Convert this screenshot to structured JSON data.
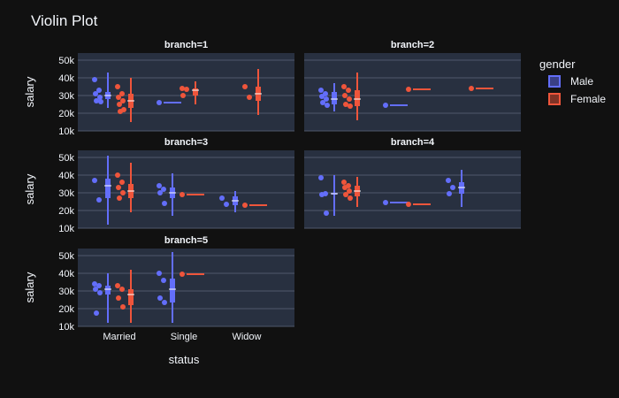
{
  "chart_data": {
    "type": "violin",
    "title": "Violin Plot",
    "xlabel": "status",
    "ylabel": "salary",
    "categories": [
      "Married",
      "Single",
      "Widow"
    ],
    "y_ticks": [
      10000,
      20000,
      30000,
      40000,
      50000
    ],
    "y_tick_labels": [
      "10k",
      "20k",
      "30k",
      "40k",
      "50k"
    ],
    "ylim": [
      10000,
      54000
    ],
    "legend": {
      "title": "gender",
      "placement": "right",
      "items": [
        {
          "name": "Male",
          "color": "#636efa"
        },
        {
          "name": "Female",
          "color": "#ef553b"
        }
      ]
    },
    "facets": [
      {
        "label": "branch=1",
        "groups": [
          {
            "series": "Male",
            "category": "Married",
            "points": [
              39000,
              33000,
              31000,
              29000,
              27000,
              26500
            ],
            "box": {
              "min": 23000,
              "q1": 28000,
              "median": 30000,
              "q3": 32000,
              "max": 43000
            }
          },
          {
            "series": "Female",
            "category": "Married",
            "points": [
              35000,
              31000,
              29000,
              27000,
              25000,
              22000,
              21000
            ],
            "box": {
              "min": 15000,
              "q1": 23000,
              "median": 27000,
              "q3": 31000,
              "max": 40000
            }
          },
          {
            "series": "Male",
            "category": "Single",
            "points": [
              26000
            ],
            "box": {
              "min": 26000,
              "q1": 26000,
              "median": 26000,
              "q3": 26000,
              "max": 26000
            }
          },
          {
            "series": "Female",
            "category": "Single",
            "points": [
              34000,
              33500,
              30000
            ],
            "box": {
              "min": 25000,
              "q1": 30000,
              "median": 33000,
              "q3": 34000,
              "max": 38000
            }
          },
          {
            "series": "Female",
            "category": "Widow",
            "points": [
              35000,
              29000
            ],
            "box": {
              "min": 19000,
              "q1": 27000,
              "median": 31000,
              "q3": 35000,
              "max": 45000
            }
          }
        ]
      },
      {
        "label": "branch=2",
        "groups": [
          {
            "series": "Male",
            "category": "Married",
            "points": [
              33000,
              31000,
              29500,
              28000,
              26000,
              24500
            ],
            "box": {
              "min": 21000,
              "q1": 25000,
              "median": 28000,
              "q3": 32000,
              "max": 37000
            }
          },
          {
            "series": "Female",
            "category": "Married",
            "points": [
              35000,
              33000,
              30000,
              28000,
              25000,
              24000
            ],
            "box": {
              "min": 16000,
              "q1": 24000,
              "median": 28000,
              "q3": 33000,
              "max": 43000
            }
          },
          {
            "series": "Male",
            "category": "Single",
            "points": [
              24500
            ],
            "box": {
              "min": 24500,
              "q1": 24500,
              "median": 24500,
              "q3": 24500,
              "max": 24500
            }
          },
          {
            "series": "Female",
            "category": "Single",
            "points": [
              33500
            ],
            "box": {
              "min": 33500,
              "q1": 33500,
              "median": 33500,
              "q3": 33500,
              "max": 33500
            }
          },
          {
            "series": "Female",
            "category": "Widow",
            "points": [
              34000
            ],
            "box": {
              "min": 34000,
              "q1": 34000,
              "median": 34000,
              "q3": 34000,
              "max": 34000
            }
          }
        ]
      },
      {
        "label": "branch=3",
        "groups": [
          {
            "series": "Male",
            "category": "Married",
            "points": [
              37000,
              26000
            ],
            "box": {
              "min": 12000,
              "q1": 27000,
              "median": 34000,
              "q3": 38000,
              "max": 51000
            }
          },
          {
            "series": "Female",
            "category": "Married",
            "points": [
              40000,
              36000,
              33000,
              30000,
              27000
            ],
            "box": {
              "min": 19000,
              "q1": 27000,
              "median": 31000,
              "q3": 35000,
              "max": 47000
            }
          },
          {
            "series": "Male",
            "category": "Single",
            "points": [
              34000,
              32000,
              30000,
              24000
            ],
            "box": {
              "min": 17000,
              "q1": 27000,
              "median": 30000,
              "q3": 33000,
              "max": 41000
            }
          },
          {
            "series": "Female",
            "category": "Single",
            "points": [
              29000
            ],
            "box": {
              "min": 29000,
              "q1": 29000,
              "median": 29000,
              "q3": 29000,
              "max": 29000
            }
          },
          {
            "series": "Male",
            "category": "Widow",
            "points": [
              27000,
              23500
            ],
            "box": {
              "min": 19000,
              "q1": 23000,
              "median": 25500,
              "q3": 28000,
              "max": 31000
            }
          },
          {
            "series": "Female",
            "category": "Widow",
            "points": [
              23000
            ],
            "box": {
              "min": 23000,
              "q1": 23000,
              "median": 23000,
              "q3": 23000,
              "max": 23000
            }
          }
        ]
      },
      {
        "label": "branch=4",
        "groups": [
          {
            "series": "Male",
            "category": "Married",
            "points": [
              38500,
              29500,
              29000,
              18500
            ],
            "box": {
              "min": 17000,
              "q1": 29000,
              "median": 29500,
              "q3": 30000,
              "max": 40000
            }
          },
          {
            "series": "Female",
            "category": "Married",
            "points": [
              36000,
              34000,
              33000,
              31000,
              29000,
              27000
            ],
            "box": {
              "min": 22000,
              "q1": 28000,
              "median": 31000,
              "q3": 34000,
              "max": 39000
            }
          },
          {
            "series": "Male",
            "category": "Single",
            "points": [
              24500
            ],
            "box": {
              "min": 24500,
              "q1": 24500,
              "median": 24500,
              "q3": 24500,
              "max": 24500
            }
          },
          {
            "series": "Female",
            "category": "Single",
            "points": [
              23500
            ],
            "box": {
              "min": 23500,
              "q1": 23500,
              "median": 23500,
              "q3": 23500,
              "max": 23500
            }
          },
          {
            "series": "Male",
            "category": "Widow",
            "points": [
              37000,
              33000,
              29500
            ],
            "box": {
              "min": 22000,
              "q1": 29500,
              "median": 33000,
              "q3": 36000,
              "max": 43000
            }
          }
        ]
      },
      {
        "label": "branch=5",
        "groups": [
          {
            "series": "Male",
            "category": "Married",
            "points": [
              34000,
              33000,
              31000,
              29000,
              17500
            ],
            "box": {
              "min": 12000,
              "q1": 28000,
              "median": 31000,
              "q3": 33000,
              "max": 40000
            }
          },
          {
            "series": "Female",
            "category": "Married",
            "points": [
              33000,
              31000,
              26000,
              21000
            ],
            "box": {
              "min": 12000,
              "q1": 22000,
              "median": 28000,
              "q3": 31000,
              "max": 42000
            }
          },
          {
            "series": "Male",
            "category": "Single",
            "points": [
              40000,
              36000,
              26000,
              23500
            ],
            "box": {
              "min": 12000,
              "q1": 23500,
              "median": 31000,
              "q3": 37000,
              "max": 52000
            }
          },
          {
            "series": "Female",
            "category": "Single",
            "points": [
              39500
            ],
            "box": {
              "min": 39500,
              "q1": 39500,
              "median": 39500,
              "q3": 39500,
              "max": 39500
            }
          }
        ]
      }
    ]
  }
}
